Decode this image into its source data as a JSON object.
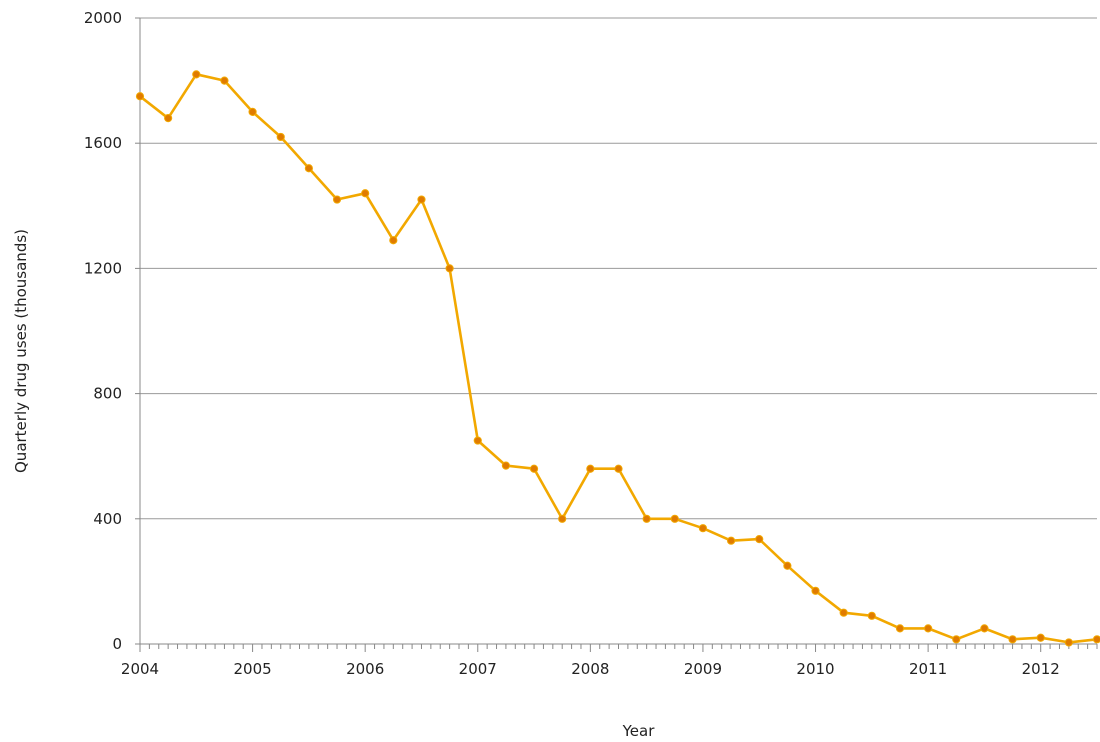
{
  "chart_data": {
    "type": "line",
    "title": "",
    "xlabel": "Year",
    "ylabel": "Quarterly drug uses (thousands)",
    "xlim": [
      2004,
      2012.5
    ],
    "ylim": [
      0,
      2000
    ],
    "xticks": [
      "2004",
      "2005",
      "2006",
      "2007",
      "2008",
      "2009",
      "2010",
      "2011",
      "2012"
    ],
    "yticks": [
      "0",
      "400",
      "800",
      "1200",
      "1600",
      "2000"
    ],
    "grid": "horizontal",
    "color": "#f2a800",
    "marker_color": "#e07b00",
    "series": [
      {
        "x": [
          2004,
          2004.25,
          2004.5,
          2004.75,
          2005,
          2005.25,
          2005.5,
          2005.75,
          2006,
          2006.25,
          2006.5,
          2006.75,
          2007,
          2007.25,
          2007.5,
          2007.75,
          2008,
          2008.25,
          2008.5,
          2008.75,
          2009,
          2009.25,
          2009.5,
          2009.75,
          2010,
          2010.25,
          2010.5,
          2010.75,
          2011,
          2011.25,
          2011.5,
          2011.75,
          2012,
          2012.25,
          2012.5
        ],
        "y": [
          1750,
          1680,
          1820,
          1800,
          1700,
          1620,
          1520,
          1420,
          1440,
          1290,
          1420,
          1200,
          650,
          570,
          560,
          400,
          560,
          560,
          400,
          400,
          370,
          330,
          335,
          250,
          170,
          100,
          90,
          50,
          50,
          15,
          50,
          15,
          20,
          5,
          15
        ]
      }
    ]
  }
}
